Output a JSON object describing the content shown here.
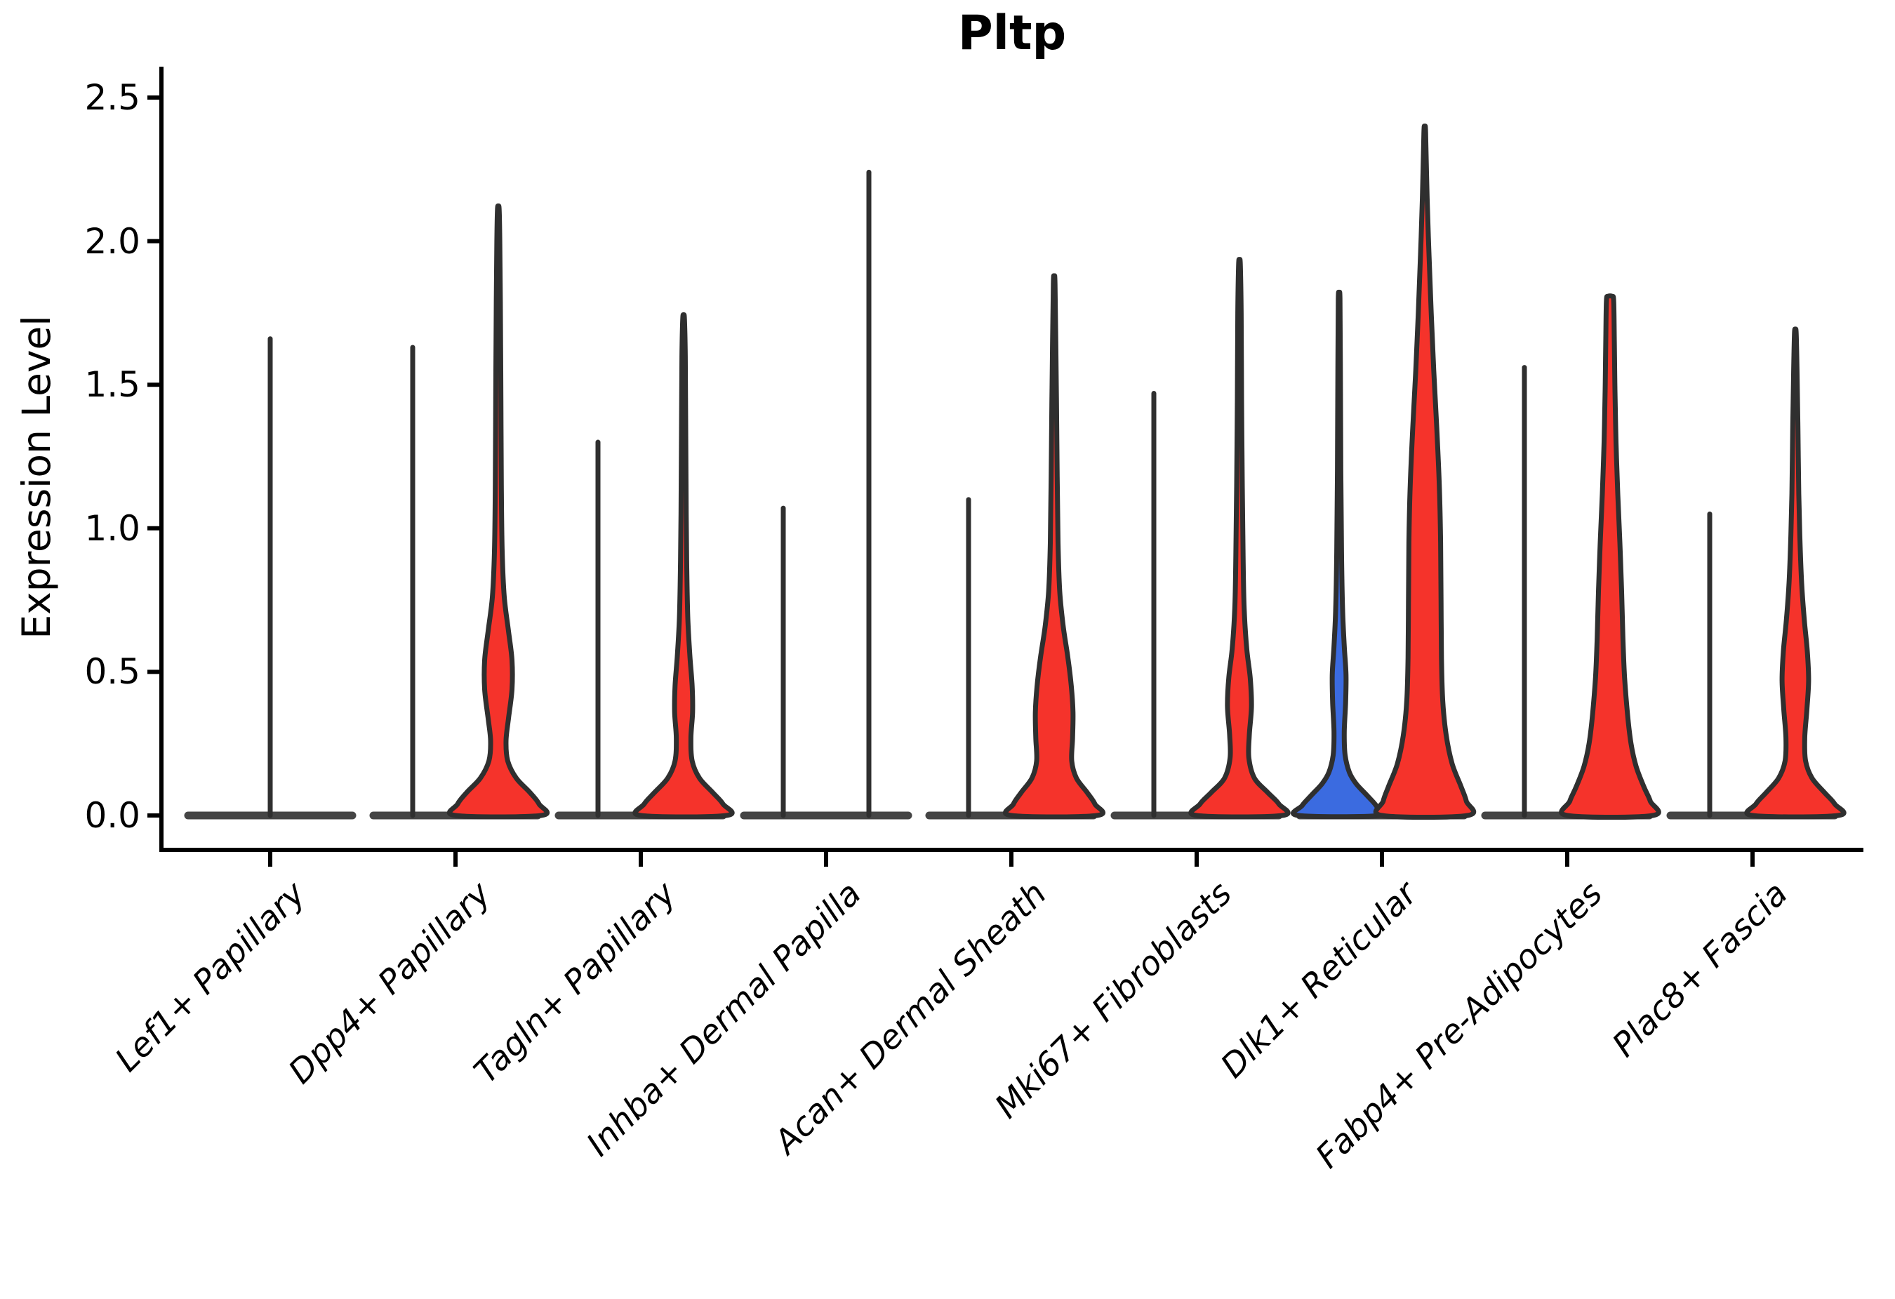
{
  "chart_data": {
    "type": "violin",
    "title": "Pltp",
    "ylabel": "Expression Level",
    "xlabel": "",
    "grid": false,
    "legend": "none",
    "ylim": [
      -0.11,
      2.6
    ],
    "yticks": [
      {
        "label": "0.0",
        "value": 0.0
      },
      {
        "label": "0.5",
        "value": 0.5
      },
      {
        "label": "1.0",
        "value": 1.0
      },
      {
        "label": "1.5",
        "value": 1.5
      },
      {
        "label": "2.0",
        "value": 2.0
      },
      {
        "label": "2.5",
        "value": 2.5
      }
    ],
    "colors": {
      "red": "#F5332B",
      "blue": "#3B6BE0",
      "outline": "#2F2F2F",
      "baseline": "#454545",
      "axis": "#000000"
    },
    "categories": [
      {
        "label": "Lef1+ Papillary",
        "violins": [
          {
            "side": "center",
            "fill": "none",
            "max": 1.66
          }
        ]
      },
      {
        "label": "Dpp4+ Papillary",
        "violins": [
          {
            "side": "left",
            "fill": "none",
            "max": 1.63
          },
          {
            "side": "right",
            "fill": "red",
            "max": 2.11,
            "profile": [
              [
                0,
                1.0
              ],
              [
                0.04,
                0.95
              ],
              [
                0.08,
                0.74
              ],
              [
                0.13,
                0.42
              ],
              [
                0.19,
                0.22
              ],
              [
                0.26,
                0.18
              ],
              [
                0.34,
                0.24
              ],
              [
                0.44,
                0.32
              ],
              [
                0.54,
                0.32
              ],
              [
                0.64,
                0.24
              ],
              [
                0.76,
                0.14
              ],
              [
                0.92,
                0.09
              ],
              [
                1.15,
                0.07
              ],
              [
                1.45,
                0.06
              ],
              [
                1.75,
                0.05
              ],
              [
                2.0,
                0.035
              ],
              [
                2.11,
                0.02
              ]
            ]
          }
        ]
      },
      {
        "label": "Tagln+ Papillary",
        "violins": [
          {
            "side": "left",
            "fill": "none",
            "max": 1.3
          },
          {
            "side": "right",
            "fill": "red",
            "max": 1.73,
            "profile": [
              [
                0,
                1.0
              ],
              [
                0.04,
                0.92
              ],
              [
                0.08,
                0.68
              ],
              [
                0.13,
                0.37
              ],
              [
                0.19,
                0.2
              ],
              [
                0.27,
                0.17
              ],
              [
                0.36,
                0.21
              ],
              [
                0.45,
                0.2
              ],
              [
                0.55,
                0.15
              ],
              [
                0.68,
                0.1
              ],
              [
                0.85,
                0.075
              ],
              [
                1.05,
                0.06
              ],
              [
                1.35,
                0.05
              ],
              [
                1.6,
                0.04
              ],
              [
                1.73,
                0.02
              ]
            ]
          }
        ]
      },
      {
        "label": "Inhba+ Dermal Papilla",
        "violins": [
          {
            "side": "left",
            "fill": "none",
            "max": 1.07
          },
          {
            "side": "right",
            "fill": "none",
            "max": 2.24
          }
        ]
      },
      {
        "label": "Acan+ Dermal Sheath",
        "violins": [
          {
            "side": "left",
            "fill": "none",
            "max": 1.1
          },
          {
            "side": "right",
            "fill": "red",
            "max": 1.85,
            "profile": [
              [
                0,
                1.0
              ],
              [
                0.04,
                0.95
              ],
              [
                0.08,
                0.77
              ],
              [
                0.13,
                0.52
              ],
              [
                0.19,
                0.41
              ],
              [
                0.27,
                0.43
              ],
              [
                0.36,
                0.44
              ],
              [
                0.45,
                0.4
              ],
              [
                0.55,
                0.32
              ],
              [
                0.66,
                0.21
              ],
              [
                0.78,
                0.13
              ],
              [
                0.95,
                0.09
              ],
              [
                1.18,
                0.07
              ],
              [
                1.5,
                0.05
              ],
              [
                1.85,
                0.02
              ]
            ]
          }
        ]
      },
      {
        "label": "Mki67+ Fibroblasts",
        "violins": [
          {
            "side": "left",
            "fill": "none",
            "max": 1.47
          },
          {
            "side": "right",
            "fill": "red",
            "max": 1.92,
            "profile": [
              [
                0,
                1.0
              ],
              [
                0.04,
                0.92
              ],
              [
                0.08,
                0.66
              ],
              [
                0.13,
                0.35
              ],
              [
                0.2,
                0.22
              ],
              [
                0.28,
                0.23
              ],
              [
                0.38,
                0.28
              ],
              [
                0.48,
                0.25
              ],
              [
                0.58,
                0.17
              ],
              [
                0.72,
                0.11
              ],
              [
                0.9,
                0.085
              ],
              [
                1.15,
                0.065
              ],
              [
                1.45,
                0.05
              ],
              [
                1.75,
                0.04
              ],
              [
                1.92,
                0.02
              ]
            ]
          }
        ]
      },
      {
        "label": "Dlk1+ Reticular",
        "violins": [
          {
            "side": "left",
            "fill": "blue",
            "max": 1.8,
            "profile": [
              [
                0,
                0.95
              ],
              [
                0.035,
                0.86
              ],
              [
                0.07,
                0.65
              ],
              [
                0.11,
                0.4
              ],
              [
                0.15,
                0.24
              ],
              [
                0.21,
                0.14
              ],
              [
                0.29,
                0.12
              ],
              [
                0.39,
                0.15
              ],
              [
                0.49,
                0.16
              ],
              [
                0.59,
                0.12
              ],
              [
                0.72,
                0.08
              ],
              [
                0.92,
                0.055
              ],
              [
                1.2,
                0.04
              ],
              [
                1.55,
                0.03
              ],
              [
                1.8,
                0.02
              ]
            ]
          },
          {
            "side": "right",
            "fill": "red",
            "max": 2.38,
            "profile": [
              [
                0,
                1.0
              ],
              [
                0.05,
                0.97
              ],
              [
                0.1,
                0.85
              ],
              [
                0.18,
                0.64
              ],
              [
                0.28,
                0.5
              ],
              [
                0.4,
                0.42
              ],
              [
                0.55,
                0.39
              ],
              [
                0.75,
                0.38
              ],
              [
                0.95,
                0.37
              ],
              [
                1.15,
                0.34
              ],
              [
                1.35,
                0.28
              ],
              [
                1.55,
                0.21
              ],
              [
                1.75,
                0.15
              ],
              [
                1.95,
                0.1
              ],
              [
                2.15,
                0.055
              ],
              [
                2.38,
                0.02
              ]
            ]
          }
        ]
      },
      {
        "label": "Fabp4+ Pre-Adipocytes",
        "violins": [
          {
            "side": "left",
            "fill": "none",
            "max": 1.56
          },
          {
            "side": "right",
            "fill": "red",
            "max": 1.79,
            "cap": true,
            "profile": [
              [
                0,
                1.0
              ],
              [
                0.05,
                0.94
              ],
              [
                0.1,
                0.79
              ],
              [
                0.17,
                0.61
              ],
              [
                0.25,
                0.49
              ],
              [
                0.35,
                0.41
              ],
              [
                0.48,
                0.34
              ],
              [
                0.62,
                0.3
              ],
              [
                0.78,
                0.27
              ],
              [
                0.95,
                0.23
              ],
              [
                1.12,
                0.18
              ],
              [
                1.3,
                0.14
              ],
              [
                1.48,
                0.115
              ],
              [
                1.65,
                0.1
              ],
              [
                1.79,
                0.085
              ]
            ]
          }
        ]
      },
      {
        "label": "Plac8+ Fascia",
        "violins": [
          {
            "side": "left",
            "fill": "none",
            "max": 1.05
          },
          {
            "side": "right",
            "fill": "red",
            "max": 1.68,
            "profile": [
              [
                0,
                1.0
              ],
              [
                0.04,
                0.92
              ],
              [
                0.08,
                0.68
              ],
              [
                0.13,
                0.39
              ],
              [
                0.19,
                0.24
              ],
              [
                0.27,
                0.22
              ],
              [
                0.37,
                0.27
              ],
              [
                0.47,
                0.31
              ],
              [
                0.57,
                0.28
              ],
              [
                0.68,
                0.21
              ],
              [
                0.8,
                0.15
              ],
              [
                0.95,
                0.11
              ],
              [
                1.12,
                0.08
              ],
              [
                1.35,
                0.06
              ],
              [
                1.55,
                0.04
              ],
              [
                1.68,
                0.02
              ]
            ]
          }
        ]
      }
    ]
  }
}
